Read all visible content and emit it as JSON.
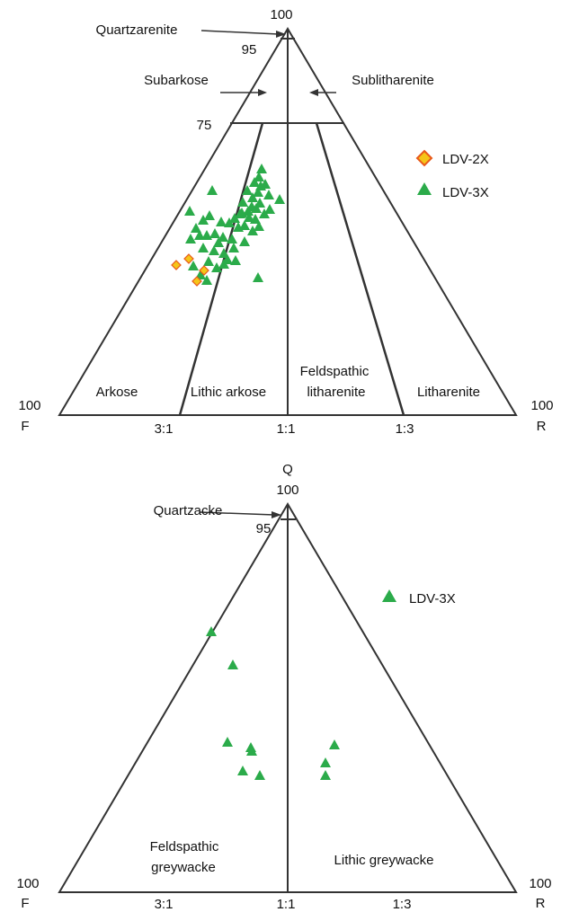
{
  "diagram1": {
    "apex_value": "100",
    "label_95": "95",
    "label_75": "75",
    "left_corner_value": "100",
    "left_corner_label": "F",
    "right_corner_value": "100",
    "right_corner_label": "R",
    "arrows": {
      "quartzarenite": "Quartzarenite",
      "subarkose": "Subarkose",
      "sublitharenite": "Sublitharenite"
    },
    "fields": {
      "arkose": "Arkose",
      "lithic_arkose": "Lithic arkose",
      "feldspathic_litharenite_1": "Feldspathic",
      "feldspathic_litharenite_2": "litharenite",
      "litharenite": "Litharenite"
    },
    "base_ticks": [
      "3:1",
      "1:1",
      "1:3"
    ],
    "legend": [
      {
        "name": "LDV-2X",
        "marker": "diamond",
        "fill": "#f5c518",
        "stroke": "#e8591a"
      },
      {
        "name": "LDV-3X",
        "marker": "triangle",
        "fill": "#2bab4a",
        "stroke": "#2bab4a"
      }
    ]
  },
  "diagram2": {
    "apex_label": "Q",
    "apex_value": "100",
    "label_95": "95",
    "left_corner_value": "100",
    "left_corner_label": "F",
    "right_corner_value": "100",
    "right_corner_label": "R",
    "arrows": {
      "quartzacke": "Quartzacke"
    },
    "fields": {
      "feldspathic_greywacke_1": "Feldspathic",
      "feldspathic_greywacke_2": "greywacke",
      "lithic_greywacke": "Lithic greywacke"
    },
    "base_ticks": [
      "3:1",
      "1:1",
      "1:3"
    ],
    "legend": [
      {
        "name": "LDV-3X",
        "marker": "triangle",
        "fill": "#2bab4a",
        "stroke": "#2bab4a"
      }
    ]
  },
  "colors": {
    "line": "#333333",
    "ldv3x": "#2bab4a",
    "ldv2x_fill": "#f5c518",
    "ldv2x_stroke": "#e8591a"
  }
}
